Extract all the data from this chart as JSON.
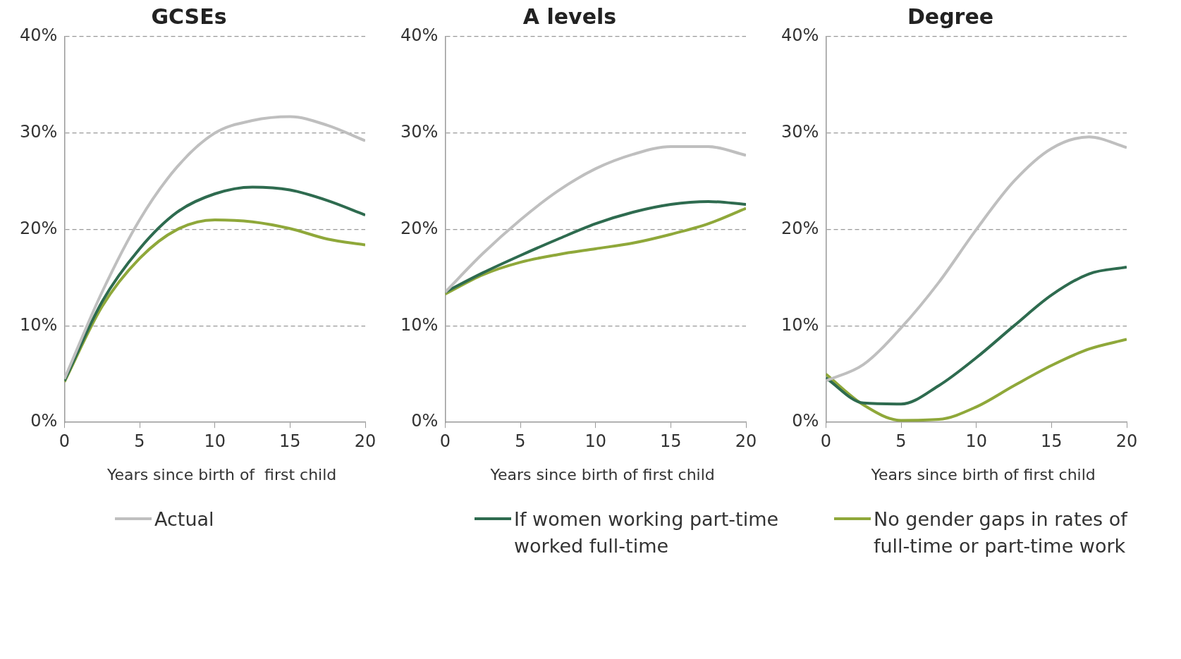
{
  "chart_data": [
    {
      "type": "line",
      "title": "GCSEs",
      "xlabel": "Years since birth of  first child",
      "x": [
        0,
        2.5,
        5,
        7.5,
        10,
        12.5,
        15,
        17.5,
        20
      ],
      "xlim": [
        0,
        20
      ],
      "xticks": [
        0,
        5,
        10,
        15,
        20
      ],
      "ylim": [
        0,
        40
      ],
      "yticks": [
        {
          "value": 0,
          "label": "0%"
        },
        {
          "value": 10,
          "label": "10%"
        },
        {
          "value": 20,
          "label": "20%"
        },
        {
          "value": 30,
          "label": "30%"
        },
        {
          "value": 40,
          "label": "40%"
        }
      ],
      "grid": "y",
      "marker": "none",
      "legend": "bottom",
      "series": [
        {
          "name": "Actual",
          "color": "#bfbfbf",
          "values": [
            4.5,
            13.5,
            21,
            26.5,
            30,
            31.3,
            31.7,
            30.8,
            29.2
          ]
        },
        {
          "name": "If women working part-time worked full-time",
          "color": "#2e6b4f",
          "values": [
            4.3,
            12.5,
            18,
            21.8,
            23.7,
            24.4,
            24.1,
            23,
            21.5
          ]
        },
        {
          "name": "No gender gaps in rates of full-time or part-time work",
          "color": "#8fa83a",
          "values": [
            4.2,
            12,
            17,
            20,
            21,
            20.8,
            20.1,
            19,
            18.4
          ]
        }
      ]
    },
    {
      "type": "line",
      "title": "A levels",
      "xlabel": "Years since birth of first child",
      "x": [
        0,
        2.5,
        5,
        7.5,
        10,
        12.5,
        15,
        17.5,
        20
      ],
      "xlim": [
        0,
        20
      ],
      "xticks": [
        0,
        5,
        10,
        15,
        20
      ],
      "ylim": [
        0,
        40
      ],
      "yticks": [
        {
          "value": 0,
          "label": "0%"
        },
        {
          "value": 10,
          "label": "10%"
        },
        {
          "value": 20,
          "label": "20%"
        },
        {
          "value": 30,
          "label": "30%"
        },
        {
          "value": 40,
          "label": "40%"
        }
      ],
      "grid": "y",
      "marker": "none",
      "series": [
        {
          "color": "#bfbfbf",
          "values": [
            13.5,
            17.5,
            21,
            24,
            26.3,
            27.8,
            28.6,
            28.6,
            27.7
          ]
        },
        {
          "color": "#2e6b4f",
          "values": [
            13.5,
            15.5,
            17.3,
            19,
            20.6,
            21.8,
            22.6,
            22.9,
            22.6
          ]
        },
        {
          "color": "#8fa83a",
          "values": [
            13.3,
            15.3,
            16.6,
            17.4,
            18,
            18.6,
            19.5,
            20.6,
            22.2
          ]
        }
      ]
    },
    {
      "type": "line",
      "title": "Degree",
      "xlabel": "Years since birth of first child",
      "x": [
        0,
        2.5,
        5,
        7.5,
        10,
        12.5,
        15,
        17.5,
        20
      ],
      "xlim": [
        0,
        20
      ],
      "xticks": [
        0,
        5,
        10,
        15,
        20
      ],
      "ylim": [
        0,
        40
      ],
      "yticks": [
        {
          "value": 0,
          "label": "0%"
        },
        {
          "value": 10,
          "label": "10%"
        },
        {
          "value": 20,
          "label": "20%"
        },
        {
          "value": 30,
          "label": "30%"
        },
        {
          "value": 40,
          "label": "40%"
        }
      ],
      "grid": "y",
      "marker": "none",
      "series": [
        {
          "color": "#bfbfbf",
          "values": [
            4.3,
            6,
            9.8,
            14.5,
            20,
            25,
            28.4,
            29.6,
            28.5
          ]
        },
        {
          "color": "#2e6b4f",
          "values": [
            4.6,
            2,
            1.9,
            3.8,
            6.7,
            10,
            13.2,
            15.4,
            16.1
          ]
        },
        {
          "color": "#8fa83a",
          "values": [
            5,
            1.8,
            0.2,
            0.3,
            1.6,
            3.8,
            5.9,
            7.6,
            8.6
          ]
        }
      ]
    }
  ]
}
